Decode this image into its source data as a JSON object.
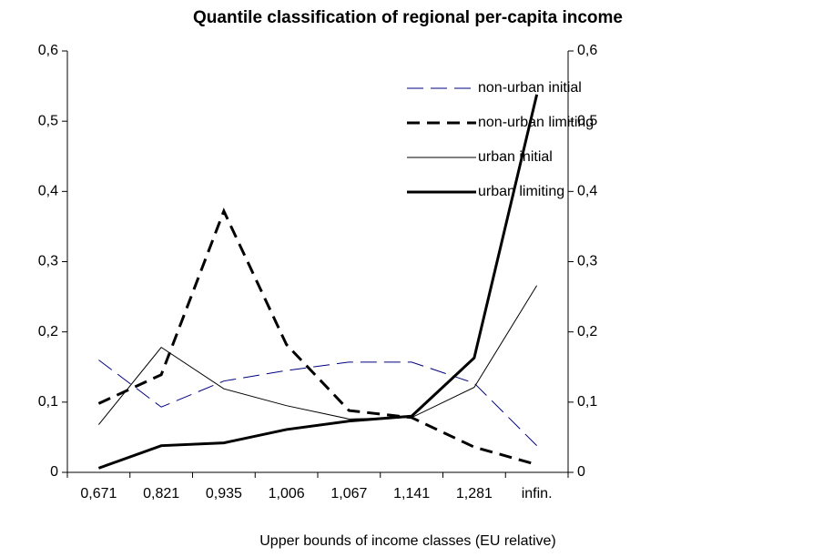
{
  "chart_data": {
    "type": "line",
    "title": "Quantile classification of regional per-capita income",
    "x_label": "Upper bounds of income classes (EU relative)",
    "categories": [
      "0,671",
      "0,821",
      "0,935",
      "1,006",
      "1,067",
      "1,141",
      "1,281",
      "infin."
    ],
    "series": [
      {
        "name": "non-urban initial",
        "color": "#000080",
        "line_style": "dashed",
        "line_width": 1,
        "values": [
          0.16,
          0.093,
          0.13,
          0.145,
          0.157,
          0.157,
          0.127,
          0.038
        ]
      },
      {
        "name": "non-urban limiting",
        "color": "#000000",
        "line_style": "dashed",
        "line_width": 3,
        "values": [
          0.098,
          0.139,
          0.372,
          0.182,
          0.088,
          0.078,
          0.036,
          0.011
        ]
      },
      {
        "name": "urban initial",
        "color": "#000000",
        "line_style": "solid",
        "line_width": 1,
        "values": [
          0.068,
          0.178,
          0.119,
          0.095,
          0.076,
          0.078,
          0.121,
          0.266
        ]
      },
      {
        "name": "urban limiting",
        "color": "#000000",
        "line_style": "solid",
        "line_width": 3,
        "values": [
          0.006,
          0.038,
          0.042,
          0.061,
          0.073,
          0.08,
          0.163,
          0.538
        ]
      }
    ],
    "ylim": [
      0,
      0.6
    ],
    "yticks": [
      0,
      {
        "value": 0.1,
        "label": "0,1"
      },
      {
        "value": 0.2,
        "label": "0,2"
      },
      {
        "value": 0.3,
        "label": "0,3"
      },
      {
        "value": 0.4,
        "label": "0,4"
      },
      {
        "value": 0.5,
        "label": "0,5"
      },
      {
        "value": 0.6,
        "label": "0,6"
      }
    ],
    "y2lim": [
      0,
      0.6
    ],
    "y2ticks": [
      0,
      {
        "value": 0.1,
        "label": "0,1"
      },
      {
        "value": 0.2,
        "label": "0,2"
      },
      {
        "value": 0.3,
        "label": "0,3"
      },
      {
        "value": 0.4,
        "label": "0,4"
      },
      {
        "value": 0.5,
        "label": "0,5"
      },
      {
        "value": 0.6,
        "label": "0,6"
      }
    ],
    "grid": false,
    "legend": "upper right"
  }
}
